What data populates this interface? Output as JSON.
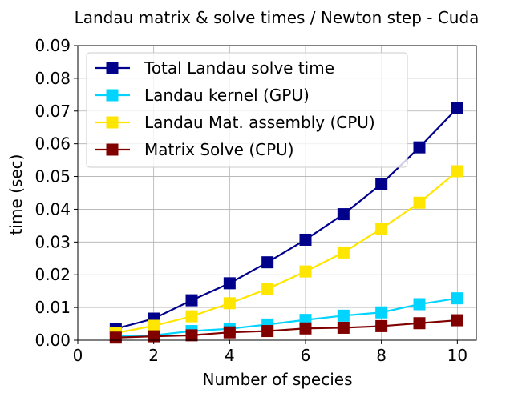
{
  "chart_data": {
    "type": "line",
    "title": "Landau matrix & solve times / Newton step - Cuda",
    "xlabel": "Number of species",
    "ylabel": "time (sec)",
    "xlim": [
      0,
      10.5
    ],
    "ylim": [
      0,
      0.09
    ],
    "xticks": [
      0,
      2,
      4,
      6,
      8,
      10
    ],
    "xtick_labels": [
      "0",
      "2",
      "4",
      "6",
      "8",
      "10"
    ],
    "yticks": [
      0,
      0.01,
      0.02,
      0.03,
      0.04,
      0.05,
      0.06,
      0.07,
      0.08,
      0.09
    ],
    "ytick_labels": [
      "0.00",
      "0.01",
      "0.02",
      "0.03",
      "0.04",
      "0.05",
      "0.06",
      "0.07",
      "0.08",
      "0.09"
    ],
    "grid": true,
    "legend_position": "top-left",
    "x": [
      1,
      2,
      3,
      4,
      5,
      6,
      7,
      8,
      9,
      10
    ],
    "series": [
      {
        "name": "Total Landau solve time",
        "color": "#00008b",
        "marker": "square",
        "values": [
          0.0035,
          0.0066,
          0.0122,
          0.0174,
          0.0238,
          0.0307,
          0.0385,
          0.0477,
          0.0589,
          0.0709
        ]
      },
      {
        "name": "Landau kernel (GPU)",
        "color": "#00d4ff",
        "marker": "square",
        "values": [
          0.0012,
          0.0015,
          0.0028,
          0.0035,
          0.0048,
          0.0062,
          0.0075,
          0.0085,
          0.011,
          0.0128
        ]
      },
      {
        "name": "Landau Mat. assembly (CPU)",
        "color": "#ffe600",
        "marker": "square",
        "values": [
          0.0022,
          0.0044,
          0.0073,
          0.0113,
          0.0157,
          0.021,
          0.0268,
          0.0341,
          0.042,
          0.0516
        ]
      },
      {
        "name": "Matrix Solve (CPU)",
        "color": "#800000",
        "marker": "square",
        "values": [
          0.0008,
          0.0012,
          0.0015,
          0.0024,
          0.0028,
          0.0036,
          0.0038,
          0.0043,
          0.0052,
          0.0061
        ]
      }
    ]
  }
}
